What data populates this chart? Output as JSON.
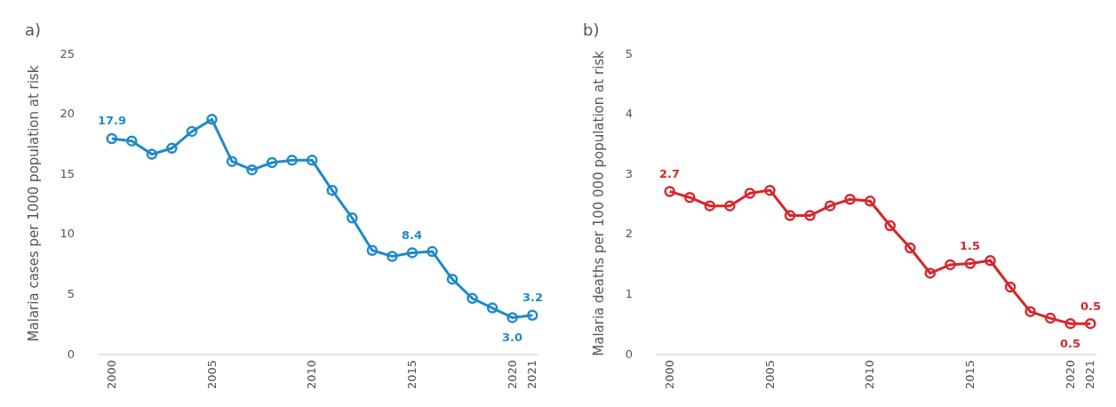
{
  "chart_data": [
    {
      "type": "line",
      "title": "a)",
      "ylabel": "Malaria cases per 1000 population at risk",
      "x": [
        2000,
        2001,
        2002,
        2003,
        2004,
        2005,
        2006,
        2007,
        2008,
        2009,
        2010,
        2011,
        2012,
        2013,
        2014,
        2015,
        2016,
        2017,
        2018,
        2019,
        2020,
        2021
      ],
      "series": [
        {
          "color": "#1f8ac9",
          "values": [
            17.9,
            17.7,
            16.6,
            17.1,
            18.5,
            19.5,
            16.0,
            15.3,
            15.9,
            16.1,
            16.1,
            13.6,
            11.3,
            8.6,
            8.1,
            8.4,
            8.5,
            6.2,
            4.6,
            3.8,
            3.0,
            3.2
          ]
        }
      ],
      "annotations": [
        {
          "text": "17.9",
          "x": 2000,
          "y": 17.9
        },
        {
          "text": "8.4",
          "x": 2015,
          "y": 8.4
        },
        {
          "text": "3.0",
          "x": 2020,
          "y": 3.0
        },
        {
          "text": "3.2",
          "x": 2021,
          "y": 3.2
        }
      ],
      "xlim": [
        1999.3,
        2021.3
      ],
      "xticks": [
        2000,
        2005,
        2010,
        2015,
        2020,
        2021
      ],
      "ylim": [
        0,
        25
      ],
      "yticks": [
        0,
        5,
        10,
        15,
        20,
        25
      ],
      "grid": false,
      "marker": "circle",
      "line_style": "solid"
    },
    {
      "type": "line",
      "title": "b)",
      "ylabel": "Malaria deaths per 100 000 population at risk",
      "x": [
        2000,
        2001,
        2002,
        2003,
        2004,
        2005,
        2006,
        2007,
        2008,
        2009,
        2010,
        2011,
        2012,
        2013,
        2014,
        2015,
        2016,
        2017,
        2018,
        2019,
        2020,
        2021
      ],
      "series": [
        {
          "color": "#d7262b",
          "values": [
            2.7,
            2.6,
            2.46,
            2.46,
            2.67,
            2.72,
            2.3,
            2.3,
            2.46,
            2.57,
            2.54,
            2.13,
            1.76,
            1.34,
            1.48,
            1.5,
            1.55,
            1.11,
            0.7,
            0.59,
            0.5,
            0.5
          ]
        }
      ],
      "annotations": [
        {
          "text": "2.7",
          "x": 2000,
          "y": 2.7
        },
        {
          "text": "1.5",
          "x": 2015,
          "y": 1.5
        },
        {
          "text": "0.5",
          "x": 2020,
          "y": 0.5
        },
        {
          "text": "0.5",
          "x": 2021,
          "y": 0.5
        }
      ],
      "xlim": [
        1999.3,
        2021.3
      ],
      "xticks": [
        2000,
        2005,
        2010,
        2015,
        2020,
        2021
      ],
      "ylim": [
        0,
        5
      ],
      "yticks": [
        0,
        1,
        2,
        3,
        4,
        5
      ],
      "grid": false,
      "marker": "circle",
      "line_style": "solid"
    }
  ]
}
